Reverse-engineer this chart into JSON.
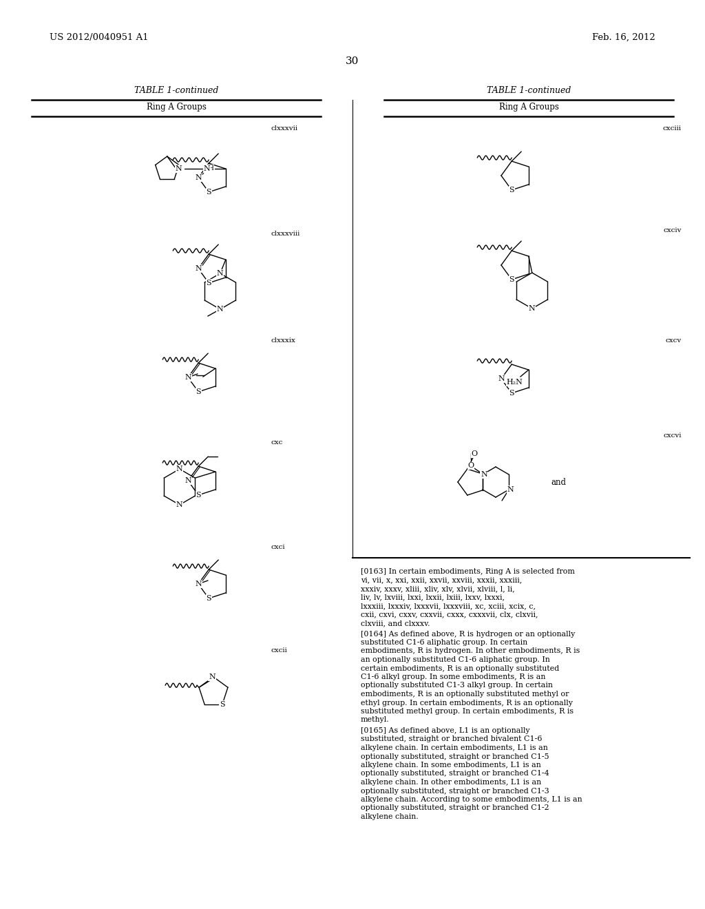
{
  "background_color": "#ffffff",
  "page_number": "30",
  "header_left": "US 2012/0040951 A1",
  "header_right": "Feb. 16, 2012",
  "left_table_title": "TABLE 1-continued",
  "right_table_title": "TABLE 1-continued",
  "column_header": "Ring A Groups",
  "labels_left": [
    "clxxxvii",
    "clxxxviii",
    "clxxxix",
    "cxc",
    "cxci",
    "cxcii"
  ],
  "labels_right": [
    "cxciii",
    "cxciv",
    "cxcv",
    "cxcvi"
  ],
  "p163": "[0163]    In certain embodiments, Ring A is selected from vi, vii, x, xxi, xxii, xxvii, xxviii, xxxii, xxxiii, xxxiv, xxxv, xliii, xliv, xlv, xlvii, xlviii, l, li, liv, lv, lxviii, lxxi, lxxii, lxiii, lxxv, lxxxi, lxxxiii, lxxxiv, lxxxvii, lxxxviii, xc, xciii, xcix, c, cxii, cxvi, cxxv, cxxvii, cxxx, cxxxvii, clx, clxvii, clxviii, and clxxxv.",
  "p164": "[0164]    As defined above, R is hydrogen or an optionally substituted C1-6 aliphatic group. In certain embodiments, R is hydrogen. In other embodiments, R is an optionally substituted C1-6 aliphatic group. In certain embodiments, R is an optionally substituted C1-6 alkyl group. In some embodiments, R is an optionally substituted C1-3 alkyl group. In certain embodiments, R is an optionally substituted methyl or ethyl group. In certain embodiments, R is an optionally substituted methyl group. In certain embodiments, R is methyl.",
  "p165": "[0165]    As defined above, L1 is an optionally substituted, straight or branched bivalent C1-6 alkylene chain. In certain embodiments, L1 is an optionally substituted, straight or branched C1-5 alkylene chain. In some embodiments, L1 is an optionally substituted, straight or branched C1-4 alkylene chain. In other embodiments, L1 is an optionally substituted, straight or branched C1-3 alkylene chain. According to some embodiments, L1 is an optionally substituted, straight or branched C1-2 alkylene chain."
}
